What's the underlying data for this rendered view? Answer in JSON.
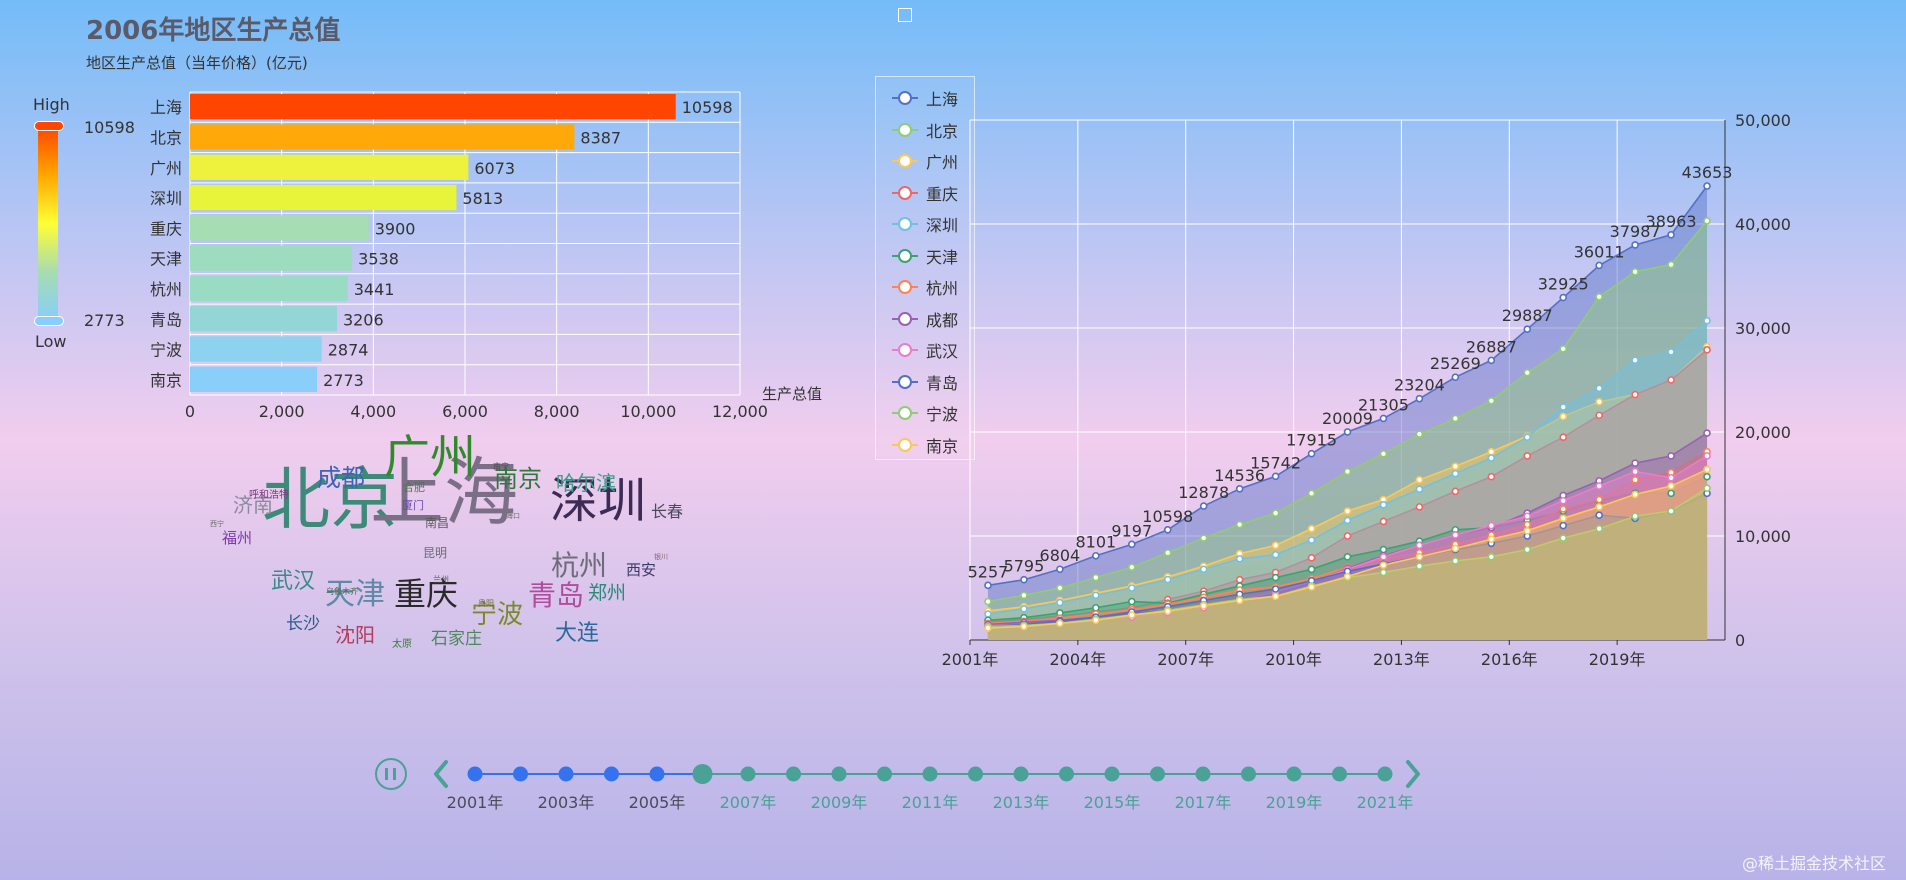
{
  "header": {
    "title": "2006年地区生产总值",
    "subtitle": "地区生产总值（当年价格）(亿元)"
  },
  "visual_map": {
    "high_label": "High",
    "low_label": "Low",
    "max_text": "10598",
    "min_text": "2773",
    "colors": [
      "#ff4500",
      "#ffa500",
      "#ffff33",
      "#a8dcb0",
      "#87cefa"
    ]
  },
  "chart_data": [
    {
      "type": "bar",
      "orientation": "horizontal",
      "title": "2006年地区生产总值",
      "xlabel": "生产总值",
      "xlim": [
        0,
        12000
      ],
      "xticks": [
        "0",
        "2,000",
        "4,000",
        "6,000",
        "8,000",
        "10,000",
        "12,000"
      ],
      "categories": [
        "上海",
        "北京",
        "广州",
        "深圳",
        "重庆",
        "天津",
        "杭州",
        "青岛",
        "宁波",
        "南京"
      ],
      "values": [
        10598,
        8387,
        6073,
        5813,
        3900,
        3538,
        3441,
        3206,
        2874,
        2773
      ],
      "colors": [
        "#ff4500",
        "#ffa80a",
        "#eef23c",
        "#e8f43a",
        "#a6ddb3",
        "#9edcbf",
        "#9adcc3",
        "#93d6d5",
        "#8dd2ee",
        "#8acefa"
      ]
    },
    {
      "type": "area",
      "stacked": false,
      "x": [
        "2001年",
        "2002年",
        "2003年",
        "2004年",
        "2005年",
        "2006年",
        "2007年",
        "2008年",
        "2009年",
        "2010年",
        "2011年",
        "2012年",
        "2013年",
        "2014年",
        "2015年",
        "2016年",
        "2017年",
        "2018年",
        "2019年",
        "2020年",
        "2021年"
      ],
      "xtick_labels": [
        "2001年",
        "2004年",
        "2007年",
        "2010年",
        "2013年",
        "2016年",
        "2019年"
      ],
      "ylim": [
        0,
        50000
      ],
      "yticks": [
        "0",
        "10,000",
        "20,000",
        "30,000",
        "40,000",
        "50,000"
      ],
      "series": [
        {
          "name": "上海",
          "color": "#5470c6",
          "labels": true,
          "values": [
            5257,
            5795,
            6804,
            8101,
            9197,
            10598,
            12878,
            14536,
            15742,
            17915,
            20009,
            21305,
            23204,
            25269,
            26887,
            29887,
            32925,
            36011,
            37987,
            38963,
            43653
          ]
        },
        {
          "name": "北京",
          "color": "#91cc75",
          "values": [
            3700,
            4300,
            5000,
            6000,
            7000,
            8387,
            9800,
            11100,
            12200,
            14100,
            16200,
            17900,
            19800,
            21300,
            23000,
            25700,
            28000,
            33000,
            35400,
            36100,
            40300
          ]
        },
        {
          "name": "广州",
          "color": "#fac858",
          "values": [
            2800,
            3200,
            3800,
            4500,
            5200,
            6073,
            7100,
            8300,
            9100,
            10700,
            12400,
            13500,
            15400,
            16700,
            18100,
            19600,
            21500,
            22900,
            23600,
            25000,
            28200
          ]
        },
        {
          "name": "重庆",
          "color": "#ee6666",
          "values": [
            1750,
            2000,
            2300,
            2700,
            3100,
            3900,
            4700,
            5800,
            6500,
            7900,
            10000,
            11400,
            12800,
            14300,
            15700,
            17700,
            19500,
            21600,
            23600,
            25000,
            27900
          ]
        },
        {
          "name": "深圳",
          "color": "#73c0de",
          "values": [
            2500,
            3000,
            3600,
            4300,
            5000,
            5813,
            6800,
            7800,
            8200,
            9600,
            11500,
            13000,
            14500,
            16000,
            17500,
            19500,
            22400,
            24200,
            26900,
            27700,
            30700
          ]
        },
        {
          "name": "天津",
          "color": "#3ba272",
          "values": [
            1900,
            2150,
            2600,
            3100,
            3700,
            3538,
            4400,
            5200,
            6000,
            6800,
            8000,
            8700,
            9500,
            10600,
            10800,
            11500,
            12400,
            13400,
            14100,
            14100,
            15700
          ]
        },
        {
          "name": "杭州",
          "color": "#fc8452",
          "values": [
            1600,
            1800,
            2100,
            2500,
            2900,
            3441,
            4100,
            4800,
            5100,
            5900,
            7000,
            7800,
            8400,
            9200,
            10100,
            11100,
            12600,
            13500,
            15400,
            16100,
            18100
          ]
        },
        {
          "name": "成都",
          "color": "#9a60b4",
          "values": [
            1500,
            1700,
            1900,
            2200,
            2600,
            2800,
            3300,
            3900,
            4500,
            5500,
            6900,
            8100,
            9100,
            10100,
            10800,
            12200,
            13900,
            15300,
            17000,
            17700,
            19900
          ]
        },
        {
          "name": "武汉",
          "color": "#ea7ccc",
          "values": [
            1350,
            1500,
            1700,
            2000,
            2200,
            2600,
            3100,
            3900,
            4600,
            5600,
            6800,
            8000,
            9100,
            10100,
            11000,
            11900,
            13400,
            14800,
            16200,
            15600,
            17700
          ]
        },
        {
          "name": "青岛",
          "color": "#5470c6",
          "values": [
            1300,
            1500,
            1800,
            2200,
            2700,
            3206,
            3800,
            4400,
            4900,
            5700,
            6600,
            7300,
            8000,
            8700,
            9300,
            10000,
            11000,
            12000,
            11700,
            12400,
            14100
          ]
        },
        {
          "name": "宁波",
          "color": "#91cc75",
          "values": [
            1300,
            1400,
            1600,
            2000,
            2400,
            2874,
            3400,
            3900,
            4200,
            5200,
            6000,
            6500,
            7100,
            7600,
            8000,
            8700,
            9800,
            10700,
            11900,
            12400,
            14600
          ]
        },
        {
          "name": "南京",
          "color": "#fac858",
          "values": [
            1150,
            1300,
            1600,
            1900,
            2400,
            2773,
            3300,
            3800,
            4200,
            5100,
            6100,
            7200,
            8000,
            8800,
            9700,
            10500,
            11700,
            12800,
            14000,
            14800,
            16400
          ]
        }
      ]
    }
  ],
  "word_cloud": [
    {
      "text": "北京",
      "size": 68,
      "color": "#3d8a78"
    },
    {
      "text": "上海",
      "size": 74,
      "color": "#7a6f86"
    },
    {
      "text": "深圳",
      "size": 48,
      "color": "#3d2a55"
    },
    {
      "text": "广州",
      "size": 46,
      "color": "#2f8a2b"
    },
    {
      "text": "重庆",
      "size": 32,
      "color": "#2a2a2a"
    },
    {
      "text": "杭州",
      "size": 28,
      "color": "#6d6d7a"
    },
    {
      "text": "天津",
      "size": 30,
      "color": "#5f8aa7"
    },
    {
      "text": "青岛",
      "size": 28,
      "color": "#b14b9d"
    },
    {
      "text": "宁波",
      "size": 26,
      "color": "#7a8a2a"
    },
    {
      "text": "南京",
      "size": 24,
      "color": "#2f7a3a"
    },
    {
      "text": "成都",
      "size": 24,
      "color": "#3a64b5"
    },
    {
      "text": "武汉",
      "size": 22,
      "color": "#3a8a8a"
    },
    {
      "text": "大连",
      "size": 22,
      "color": "#2a6a9a"
    },
    {
      "text": "沈阳",
      "size": 20,
      "color": "#b43a5a"
    },
    {
      "text": "哈尔滨",
      "size": 20,
      "color": "#3aa08a"
    },
    {
      "text": "济南",
      "size": 20,
      "color": "#8a8aa0"
    },
    {
      "text": "郑州",
      "size": 19,
      "color": "#2a8a7a"
    },
    {
      "text": "长沙",
      "size": 17,
      "color": "#2a5a8a"
    },
    {
      "text": "石家庄",
      "size": 17,
      "color": "#4a8a5a"
    },
    {
      "text": "长春",
      "size": 16,
      "color": "#4a4a5a"
    },
    {
      "text": "福州",
      "size": 15,
      "color": "#7a3aaa"
    },
    {
      "text": "西安",
      "size": 15,
      "color": "#3a3a6a"
    },
    {
      "text": "南昌",
      "size": 12,
      "color": "#5a5a5a"
    },
    {
      "text": "昆明",
      "size": 12,
      "color": "#6a6a7a"
    },
    {
      "text": "厦门",
      "size": 11,
      "color": "#6a4aaa"
    },
    {
      "text": "合肥",
      "size": 11,
      "color": "#4a7a4a"
    },
    {
      "text": "太原",
      "size": 10,
      "color": "#3a7a3a"
    },
    {
      "text": "呼和浩特",
      "size": 10,
      "color": "#7a3a7a"
    },
    {
      "text": "南宁",
      "size": 8,
      "color": "#4a4a4a"
    },
    {
      "text": "兰州",
      "size": 8,
      "color": "#5a5a5a"
    },
    {
      "text": "乌鲁木齐",
      "size": 8,
      "color": "#4a6a4a"
    },
    {
      "text": "贵阳",
      "size": 8,
      "color": "#6a6a2a"
    },
    {
      "text": "海口",
      "size": 7,
      "color": "#6a6a6a"
    },
    {
      "text": "西宁",
      "size": 7,
      "color": "#6a6a6a"
    },
    {
      "text": "银川",
      "size": 7,
      "color": "#8a6a7a"
    }
  ],
  "timeline": {
    "current_year": "2006年",
    "labels": [
      "2001年",
      "2003年",
      "2005年",
      "2007年",
      "2009年",
      "2011年",
      "2013年",
      "2015年",
      "2017年",
      "2019年",
      "2021年"
    ],
    "points": [
      "2001年",
      "2002年",
      "2003年",
      "2004年",
      "2005年",
      "2006年",
      "2007年",
      "2008年",
      "2009年",
      "2010年",
      "2011年",
      "2012年",
      "2013年",
      "2014年",
      "2015年",
      "2016年",
      "2017年",
      "2018年",
      "2019年",
      "2020年",
      "2021年"
    ],
    "past_color": "#3572ee",
    "future_color": "#4aa196"
  },
  "toolbox": {
    "icon": "square-icon"
  },
  "watermark": "@稀土掘金技术社区"
}
